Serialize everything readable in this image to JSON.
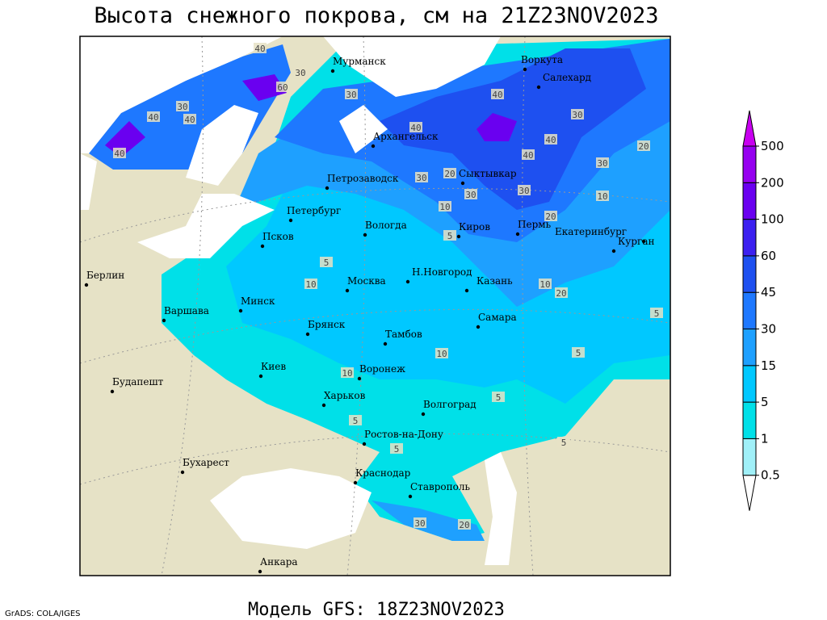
{
  "title": "Высота снежного покрова, см на 21Z23NOV2023",
  "subtitle": "Модель GFS: 18Z23NOV2023",
  "credit": "GrADS: COLA/IGES",
  "cities": [
    "Мурманск",
    "Воркута",
    "Салехард",
    "Архангельск",
    "Петрозаводск",
    "Сыктывкар",
    "Петербург",
    "Вологда",
    "Киров",
    "Пермь",
    "Екатеринбург",
    "Курган",
    "Псков",
    "Берлин",
    "Н.Новгород",
    "Москва",
    "Казань",
    "Варшава",
    "Минск",
    "Брянск",
    "Самара",
    "Тамбов",
    "Киев",
    "Воронеж",
    "Будапешт",
    "Харьков",
    "Волгоград",
    "Ростов-на-Дону",
    "Бухарест",
    "Краснодар",
    "Ставрополь",
    "Анкара"
  ],
  "contour_labels": [
    40,
    30,
    60,
    30,
    40,
    30,
    40,
    40,
    40,
    40,
    30,
    40,
    40,
    20,
    30,
    20,
    30,
    30,
    30,
    20,
    10,
    10,
    5,
    5,
    10,
    10,
    20,
    5,
    5,
    10,
    10,
    5,
    5,
    5,
    5,
    30,
    20
  ],
  "colorbar": {
    "levels": [
      0.5,
      1,
      5,
      15,
      30,
      45,
      60,
      100,
      200,
      500
    ],
    "colors": [
      "#ffffff",
      "#a0f0f8",
      "#00e0e8",
      "#00c8ff",
      "#1ea0ff",
      "#1e78ff",
      "#1e50f0",
      "#3c20f0",
      "#6a00f0",
      "#9600f0",
      "#c800f0"
    ]
  }
}
